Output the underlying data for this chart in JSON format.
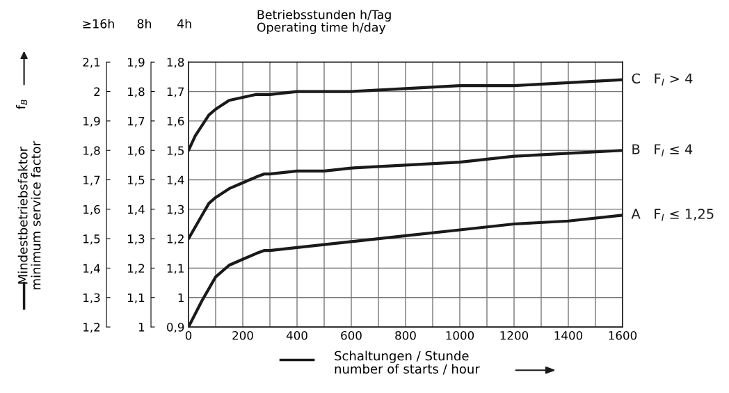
{
  "chart_data": {
    "type": "line",
    "title": "Betriebsstunden h/Tag\nOperating time h/day",
    "xlabel": "Schaltungen / Stunde\nnumber of starts / hour",
    "y3label": "Mindestbetriebsfaktor\nminimum service factor",
    "annotations": [
      "4h",
      "8h",
      "≥16h",
      "f$_{B}$"
    ],
    "series": [
      {
        "name": "C   F$_{I}$ > 4",
        "color": "#1a1a1a",
        "x": [
          0,
          25,
          75,
          100,
          150,
          200,
          250,
          300,
          400,
          500,
          600,
          800,
          1000,
          1200,
          1400,
          1600
        ],
        "values": [
          1.5,
          1.55,
          1.62,
          1.64,
          1.67,
          1.68,
          1.69,
          1.69,
          1.7,
          1.7,
          1.7,
          1.71,
          1.72,
          1.72,
          1.73,
          1.74
        ]
      },
      {
        "name": "B   F$_{I}$ ≤ 4",
        "color": "#1a1a1a",
        "x": [
          0,
          50,
          75,
          100,
          150,
          200,
          250,
          280,
          300,
          400,
          500,
          600,
          800,
          1000,
          1200,
          1400,
          1600
        ],
        "values": [
          1.2,
          1.28,
          1.32,
          1.34,
          1.37,
          1.39,
          1.41,
          1.42,
          1.42,
          1.43,
          1.43,
          1.44,
          1.45,
          1.46,
          1.48,
          1.49,
          1.5
        ]
      },
      {
        "name": "A   F$_{I}$ ≤ 1,25",
        "color": "#1a1a1a",
        "x": [
          0,
          50,
          100,
          150,
          200,
          250,
          280,
          300,
          400,
          500,
          600,
          800,
          1000,
          1200,
          1400,
          1600
        ],
        "values": [
          0.9,
          0.99,
          1.07,
          1.11,
          1.13,
          1.15,
          1.16,
          1.16,
          1.17,
          1.18,
          1.19,
          1.21,
          1.23,
          1.25,
          1.26,
          1.28
        ]
      }
    ],
    "xlim": [
      0,
      1600
    ],
    "xticks": [
      0,
      {
        "value": 100,
        "label": null
      },
      200,
      {
        "value": 300,
        "label": null
      },
      400,
      {
        "value": 500,
        "label": null
      },
      600,
      {
        "value": 700,
        "label": null
      },
      800,
      {
        "value": 900,
        "label": null
      },
      1000,
      {
        "value": 1100,
        "label": null
      },
      1200,
      {
        "value": 1300,
        "label": null
      },
      1400,
      {
        "value": 1500,
        "label": null
      },
      1600
    ],
    "ylim": [
      0.9,
      1.8
    ],
    "yticks": [
      {
        "value": 0.9,
        "label": "0,9"
      },
      {
        "value": 1.0,
        "label": "1"
      },
      {
        "value": 1.1,
        "label": "1,1"
      },
      {
        "value": 1.2,
        "label": "1,2"
      },
      {
        "value": 1.3,
        "label": "1,3"
      },
      {
        "value": 1.4,
        "label": "1,4"
      },
      {
        "value": 1.5,
        "label": "1,5"
      },
      {
        "value": 1.6,
        "label": "1,6"
      },
      {
        "value": 1.7,
        "label": "1,7"
      },
      {
        "value": 1.8,
        "label": "1,8"
      }
    ],
    "y2lim": [
      1.0,
      1.9
    ],
    "y2ticks": [
      {
        "value": 1.0,
        "label": "1"
      },
      {
        "value": 1.1,
        "label": "1,1"
      },
      {
        "value": 1.2,
        "label": "1,2"
      },
      {
        "value": 1.3,
        "label": "1,3"
      },
      {
        "value": 1.4,
        "label": "1,4"
      },
      {
        "value": 1.5,
        "label": "1,5"
      },
      {
        "value": 1.6,
        "label": "1,6"
      },
      {
        "value": 1.7,
        "label": "1,7"
      },
      {
        "value": 1.8,
        "label": "1,8"
      },
      {
        "value": 1.9,
        "label": "1,9"
      }
    ],
    "y3lim": [
      1.2,
      2.1
    ],
    "y3ticks": [
      {
        "value": 1.2,
        "label": "1,2"
      },
      {
        "value": 1.3,
        "label": "1,3"
      },
      {
        "value": 1.4,
        "label": "1,4"
      },
      {
        "value": 1.5,
        "label": "1,5"
      },
      {
        "value": 1.6,
        "label": "1,6"
      },
      {
        "value": 1.7,
        "label": "1,7"
      },
      {
        "value": 1.8,
        "label": "1,8"
      },
      {
        "value": 1.9,
        "label": "1,9"
      },
      {
        "value": 2.0,
        "label": "2"
      },
      {
        "value": 2.1,
        "label": "2,1"
      }
    ],
    "grid": true,
    "legend": false,
    "marker": "none",
    "line_style": "solid"
  }
}
